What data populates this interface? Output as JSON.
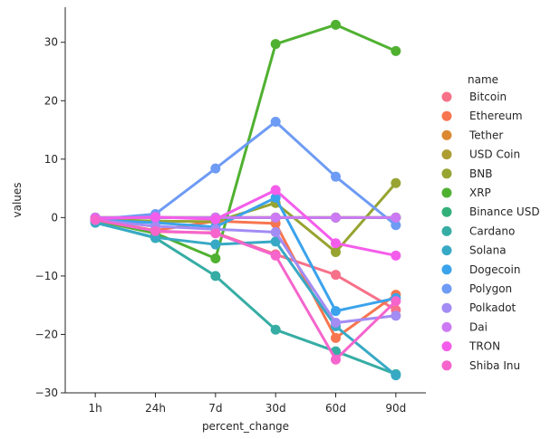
{
  "chart_data": {
    "type": "line",
    "xlabel": "percent_change",
    "ylabel": "values",
    "categories": [
      "1h",
      "24h",
      "7d",
      "30d",
      "60d",
      "90d"
    ],
    "ylim": [
      -30,
      36
    ],
    "yticks": [
      -30,
      -20,
      -10,
      0,
      10,
      20,
      30
    ],
    "legend_title": "name",
    "legend_position": "right",
    "grid": false,
    "series": [
      {
        "name": "Bitcoin",
        "color": "#f77189",
        "values": [
          -0.3,
          -2.4,
          -2.6,
          -6.3,
          -9.8,
          -15.8
        ]
      },
      {
        "name": "Ethereum",
        "color": "#f7754f",
        "values": [
          -0.4,
          -2.2,
          -0.6,
          -1.0,
          -20.6,
          -13.2
        ]
      },
      {
        "name": "Tether",
        "color": "#dc8932",
        "values": [
          0.0,
          0.0,
          0.0,
          0.0,
          0.0,
          0.0
        ]
      },
      {
        "name": "USD Coin",
        "color": "#ae9d31",
        "values": [
          0.0,
          0.0,
          0.0,
          0.0,
          0.0,
          0.0
        ]
      },
      {
        "name": "BNB",
        "color": "#97a431",
        "values": [
          -0.3,
          -0.6,
          -0.7,
          2.5,
          -5.9,
          5.9
        ]
      },
      {
        "name": "XRP",
        "color": "#50b131",
        "values": [
          -0.5,
          -2.7,
          -7.0,
          29.7,
          33.0,
          28.5
        ]
      },
      {
        "name": "Binance USD",
        "color": "#33b07a",
        "values": [
          0.0,
          0.0,
          0.0,
          0.0,
          0.0,
          0.0
        ]
      },
      {
        "name": "Cardano",
        "color": "#36ada4",
        "values": [
          -0.8,
          -3.5,
          -10.0,
          -19.2,
          -22.9,
          -26.8
        ]
      },
      {
        "name": "Solana",
        "color": "#38a9c5",
        "values": [
          -0.9,
          -3.4,
          -4.6,
          -4.1,
          -18.6,
          -27.0
        ]
      },
      {
        "name": "Dogecoin",
        "color": "#3ba3ec",
        "values": [
          -0.4,
          -0.9,
          -1.6,
          3.4,
          -16.0,
          -13.8
        ]
      },
      {
        "name": "Polygon",
        "color": "#6e9bf4",
        "values": [
          -0.3,
          0.6,
          8.4,
          16.4,
          7.0,
          -1.3
        ]
      },
      {
        "name": "Polkadot",
        "color": "#a38cf4",
        "values": [
          -0.4,
          -1.5,
          -2.0,
          -2.5,
          -18.0,
          -16.8
        ]
      },
      {
        "name": "Dai",
        "color": "#cc7af4",
        "values": [
          0.0,
          0.0,
          0.0,
          0.0,
          0.0,
          0.0
        ]
      },
      {
        "name": "TRON",
        "color": "#f45deb",
        "values": [
          -0.2,
          0.1,
          -0.3,
          4.7,
          -4.4,
          -6.5
        ]
      },
      {
        "name": "Shiba Inu",
        "color": "#f565cc",
        "values": [
          -0.4,
          -2.3,
          -2.7,
          -6.5,
          -24.3,
          -14.3
        ]
      }
    ]
  }
}
